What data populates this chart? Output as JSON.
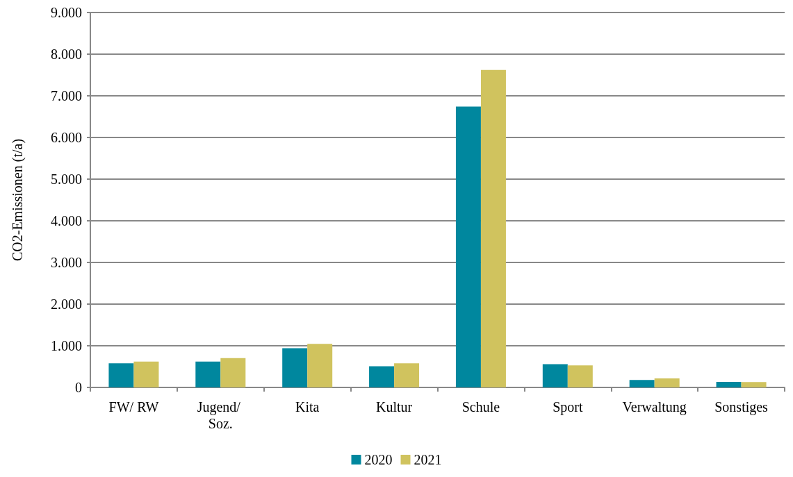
{
  "chart_data": {
    "type": "bar",
    "ylabel": "CO2-Emissionen (t/a)",
    "categories": [
      "FW/ RW",
      "Jugend/ Soz.",
      "Kita",
      "Kultur",
      "Schule",
      "Sport",
      "Verwaltung",
      "Sonstiges"
    ],
    "series": [
      {
        "name": "2020",
        "color": "#00879e",
        "values": [
          580,
          620,
          940,
          510,
          6740,
          560,
          180,
          135
        ]
      },
      {
        "name": "2021",
        "color": "#d0c35e",
        "values": [
          620,
          705,
          1045,
          580,
          7620,
          530,
          215,
          130
        ]
      }
    ],
    "ylim": [
      0,
      9000
    ],
    "yticks": [
      0,
      {
        "value": 1000,
        "label": "1.000"
      },
      {
        "value": 2000,
        "label": "2.000"
      },
      {
        "value": 3000,
        "label": "3.000"
      },
      {
        "value": 4000,
        "label": "4.000"
      },
      {
        "value": 5000,
        "label": "5.000"
      },
      {
        "value": 6000,
        "label": "6.000"
      },
      {
        "value": 7000,
        "label": "7.000"
      },
      {
        "value": 8000,
        "label": "8.000"
      },
      {
        "value": 9000,
        "label": "9.000"
      }
    ],
    "grid": "y",
    "legend": "bottom"
  }
}
